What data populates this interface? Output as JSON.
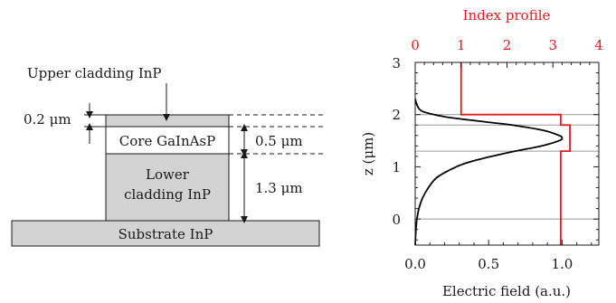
{
  "diagram": {
    "upper_cladding": "Upper cladding InP",
    "core": "Core GaInAsP",
    "lower_cladding_line1": "Lower",
    "lower_cladding_line2": "cladding InP",
    "substrate": "Substrate InP",
    "dim_upper": "0.2 μm",
    "dim_core": "0.5 μm",
    "dim_lower": "1.3 μm",
    "fill_color": "#d3d3d3"
  },
  "chart_data": {
    "type": "line",
    "top_xlabel": "Index profile",
    "bottom_xlabel": "Electric field (a.u.)",
    "ylabel": "z (μm)",
    "xlim_bottom": [
      0,
      1.25
    ],
    "xlim_top": [
      0,
      4
    ],
    "ylim": [
      -0.5,
      3
    ],
    "top_ticks": [
      "0",
      "1",
      "2",
      "3",
      "4"
    ],
    "bottom_ticks": [
      "0.0",
      "0.5",
      "1.0"
    ],
    "y_ticks": [
      "0",
      "1",
      "2",
      "3"
    ],
    "gridlines_z": [
      0,
      1.3,
      1.8,
      2.0
    ],
    "field_color": "#000000",
    "index_color": "#e31a1c",
    "series": [
      {
        "axis": "bottom",
        "z": [
          -0.5,
          -0.3,
          -0.1,
          0.0,
          0.2,
          0.4,
          0.6,
          0.8,
          1.0,
          1.1,
          1.2,
          1.3,
          1.4,
          1.5,
          1.55,
          1.6,
          1.7,
          1.8,
          1.85,
          1.9,
          1.95,
          2.0,
          2.05,
          2.1,
          2.2,
          2.3
        ],
        "values": [
          0.0,
          0.003,
          0.008,
          0.012,
          0.025,
          0.05,
          0.09,
          0.15,
          0.28,
          0.38,
          0.52,
          0.68,
          0.86,
          0.98,
          1.0,
          0.98,
          0.87,
          0.66,
          0.51,
          0.36,
          0.22,
          0.13,
          0.06,
          0.03,
          0.01,
          0.0
        ]
      },
      {
        "axis": "top",
        "z": [
          -0.5,
          1.3,
          1.3,
          1.8,
          1.8,
          2.0,
          2.0,
          3.0
        ],
        "values": [
          3.17,
          3.17,
          3.37,
          3.37,
          3.17,
          3.17,
          1.0,
          1.0
        ]
      }
    ]
  }
}
